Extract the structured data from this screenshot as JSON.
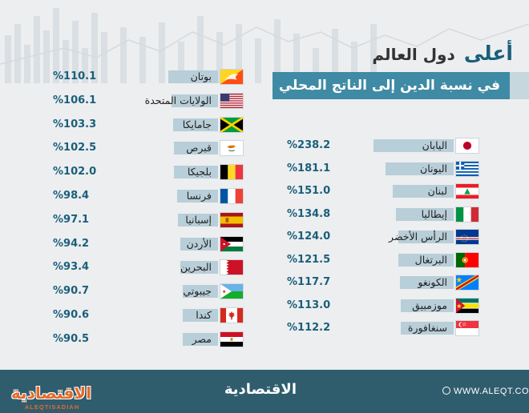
{
  "header": {
    "title_highlight": "أعلى",
    "title_rest": "دول العالم",
    "subtitle": "في نسبة الدين إلى الناتج المحلي"
  },
  "colors": {
    "accent": "#1a5f7a",
    "bar": "#b8ced8",
    "banner": "#3f8aa4",
    "footer": "#2f5d6e",
    "logo": "#e46a2a"
  },
  "chart_data": {
    "type": "bar",
    "orientation": "horizontal",
    "value_format": "%{v}",
    "groups": [
      {
        "name": "right-column",
        "rows": [
          {
            "country": "اليابان",
            "value": 238.2,
            "label": "%238.2",
            "flag": "japan-flag"
          },
          {
            "country": "اليونان",
            "value": 181.1,
            "label": "%181.1",
            "flag": "greece-flag"
          },
          {
            "country": "لبنان",
            "value": 151.0,
            "label": "%151.0",
            "flag": "lebanon-flag"
          },
          {
            "country": "إيطاليا",
            "value": 134.8,
            "label": "%134.8",
            "flag": "italy-flag"
          },
          {
            "country": "الرأس الأخضر",
            "value": 124.0,
            "label": "%124.0",
            "flag": "cape-verde-flag"
          },
          {
            "country": "البرتغال",
            "value": 121.5,
            "label": "%121.5",
            "flag": "portugal-flag"
          },
          {
            "country": "الكونغو",
            "value": 117.7,
            "label": "%117.7",
            "flag": "congo-flag"
          },
          {
            "country": "موزمبيق",
            "value": 113.0,
            "label": "%113.0",
            "flag": "mozambique-flag"
          },
          {
            "country": "سنغافورة",
            "value": 112.2,
            "label": "%112.2",
            "flag": "singapore-flag"
          }
        ]
      },
      {
        "name": "left-column",
        "rows": [
          {
            "country": "بوتان",
            "value": 110.1,
            "label": "%110.1",
            "flag": "bhutan-flag"
          },
          {
            "country": "الولايات المتحدة",
            "value": 106.1,
            "label": "%106.1",
            "flag": "usa-flag"
          },
          {
            "country": "جامايكا",
            "value": 103.3,
            "label": "%103.3",
            "flag": "jamaica-flag"
          },
          {
            "country": "قبرص",
            "value": 102.5,
            "label": "%102.5",
            "flag": "cyprus-flag"
          },
          {
            "country": "بلجيكا",
            "value": 102.0,
            "label": "%102.0",
            "flag": "belgium-flag"
          },
          {
            "country": "فرنسا",
            "value": 98.4,
            "label": "%98.4",
            "flag": "france-flag"
          },
          {
            "country": "إسبانيا",
            "value": 97.1,
            "label": "%97.1",
            "flag": "spain-flag"
          },
          {
            "country": "الأردن",
            "value": 94.2,
            "label": "%94.2",
            "flag": "jordan-flag"
          },
          {
            "country": "البحرين",
            "value": 93.4,
            "label": "%93.4",
            "flag": "bahrain-flag"
          },
          {
            "country": "جيبوتي",
            "value": 90.7,
            "label": "%90.7",
            "flag": "djibouti-flag"
          },
          {
            "country": "كندا",
            "value": 90.6,
            "label": "%90.6",
            "flag": "canada-flag"
          },
          {
            "country": "مصر",
            "value": 90.5,
            "label": "%90.5",
            "flag": "egypt-flag"
          }
        ]
      }
    ]
  },
  "footer": {
    "url": "WWW.ALEQT.COM",
    "brand": "الاقتصادية",
    "logo_text": "الاقتصادية",
    "logo_sub": "ALEQTISADIAH"
  }
}
